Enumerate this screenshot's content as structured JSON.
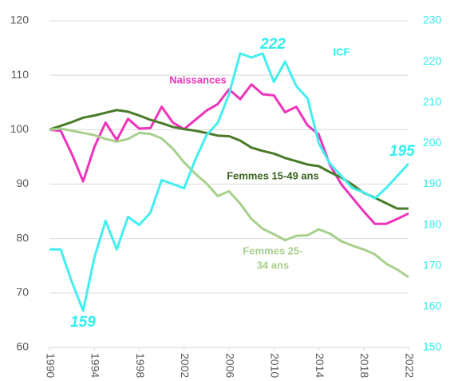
{
  "chart_data": {
    "type": "line",
    "x": [
      1990,
      1991,
      1992,
      1993,
      1994,
      1995,
      1996,
      1997,
      1998,
      1999,
      2000,
      2001,
      2002,
      2003,
      2004,
      2005,
      2006,
      2007,
      2008,
      2009,
      2010,
      2011,
      2012,
      2013,
      2014,
      2015,
      2016,
      2017,
      2018,
      2019,
      2020,
      2021,
      2022
    ],
    "xlim": [
      1990,
      2022
    ],
    "xticks": [
      1990,
      1994,
      1998,
      2002,
      2006,
      2010,
      2014,
      2018,
      2022
    ],
    "ylim": [
      60,
      120
    ],
    "yticks": [
      60,
      70,
      80,
      90,
      100,
      110,
      120
    ],
    "y2lim": [
      150,
      230
    ],
    "y2ticks": [
      150,
      160,
      170,
      180,
      190,
      200,
      210,
      220,
      230
    ],
    "y2color": "#33eeee",
    "grid": true,
    "series": [
      {
        "name": "Naissances",
        "color": "#ee33bb",
        "values": [
          100,
          99.8,
          95.5,
          90.5,
          96.8,
          101.3,
          98.1,
          102,
          100.2,
          100.3,
          104.2,
          101.3,
          100.1,
          101.8,
          103.5,
          104.7,
          107.4,
          105.6,
          108.3,
          106.5,
          106.3,
          103.2,
          104.2,
          100.8,
          99.1,
          93.5,
          90,
          87.5,
          85,
          82.7,
          82.7,
          83.6,
          84.6
        ]
      },
      {
        "name": "Femmes 15-49 ans",
        "color": "#4a7a2a",
        "values": [
          100,
          100.7,
          101.4,
          102.2,
          102.6,
          103.1,
          103.6,
          103.3,
          102.6,
          101.8,
          101.2,
          100.5,
          100.1,
          99.8,
          99.4,
          98.9,
          98.8,
          98,
          96.7,
          96.1,
          95.6,
          94.8,
          94.2,
          93.6,
          93.3,
          92.2,
          91.2,
          89.9,
          88.4,
          87.5,
          86.5,
          85.5,
          85.5
        ]
      },
      {
        "name": "Femmes 25-34 ans",
        "color": "#a8d08d",
        "values": [
          100,
          100.2,
          99.8,
          99.4,
          99,
          98.3,
          97.8,
          98.3,
          99.4,
          99.2,
          98.4,
          96.5,
          94,
          91.9,
          90.1,
          87.8,
          88.7,
          86.4,
          83.6,
          81.8,
          80.8,
          79.7,
          80.5,
          80.6,
          81.7,
          80.9,
          79.5,
          78.7,
          78,
          77.1,
          75.4,
          74.3,
          72.9
        ]
      },
      {
        "name": "ICF",
        "color": "#44eeee",
        "axis": "y2",
        "values": [
          174,
          174,
          166,
          159,
          172,
          181,
          174,
          182,
          180,
          183,
          191,
          190,
          189,
          196,
          202,
          205,
          212,
          222,
          221,
          222,
          215,
          220,
          214,
          211,
          200,
          195,
          192,
          189,
          188,
          186.5,
          189,
          192,
          195
        ]
      }
    ],
    "annotations": [
      {
        "text": "Naissances",
        "color": "#ee33bb"
      },
      {
        "text": "ICF",
        "color": "#33eeee"
      },
      {
        "text": "Femmes 15-49 ans",
        "color": "#3a6420"
      },
      {
        "lines": [
          "Femmes 25-",
          "34 ans"
        ],
        "color": "#a8d08d"
      },
      {
        "text": "222",
        "color": "#33eeee"
      },
      {
        "text": "195",
        "color": "#33eeee"
      },
      {
        "text": "159",
        "color": "#33eeee"
      }
    ]
  }
}
